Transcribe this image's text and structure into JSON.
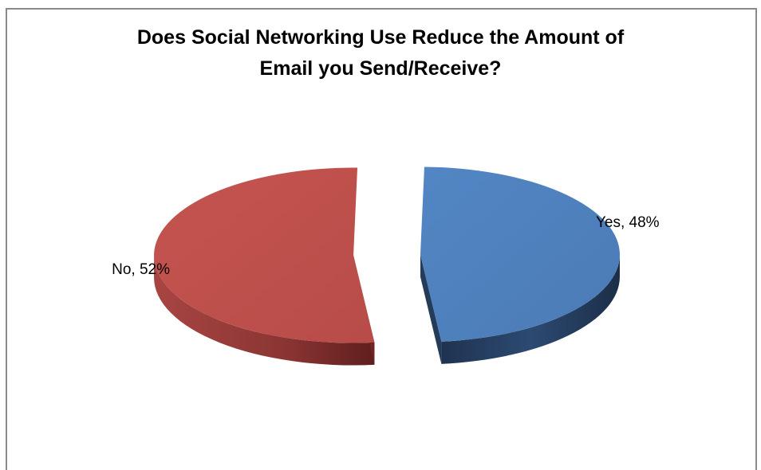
{
  "chart_data": {
    "type": "pie",
    "title": "Does Social Networking Use Reduce the Amount of Email you Send/Receive?",
    "title_lines": [
      "Does Social Networking Use Reduce the Amount of",
      "Email you Send/Receive?"
    ],
    "style": "3d-exploded",
    "legend": "none",
    "slices": [
      {
        "label": "Yes",
        "value": 48,
        "data_label": "Yes, 48%",
        "color": "#4F81BD",
        "side_color": "#243B5A"
      },
      {
        "label": "No",
        "value": 52,
        "data_label": "No, 52%",
        "color": "#C0504D",
        "side_color": "#6E2523"
      }
    ]
  }
}
